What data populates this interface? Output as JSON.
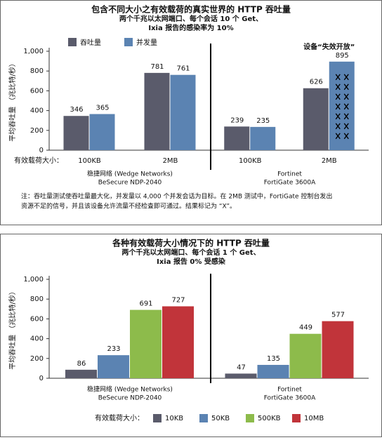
{
  "chart_data": [
    {
      "type": "bar",
      "title": "包含不同大小之有效载荷的真实世界的 HTTP 吞吐量",
      "subtitle": [
        "两个千兆以太网端口、每个会话 10 个 Get、",
        "Ixia 报告的感染率为 10%"
      ],
      "y_label": "平均吞吐量 （兆比特/秒）",
      "x_label": "有效载荷大小：",
      "categories": [
        "100KB",
        "2MB",
        "100KB",
        "2MB"
      ],
      "groups": [
        [
          "稳捷网络 (Wedge Networks)",
          "BeSecure NDP-2040"
        ],
        [
          "Fortinet",
          "FortiGate 3600A"
        ]
      ],
      "series": [
        {
          "name": "吞吐量",
          "color": "#5a5b6b",
          "values": [
            346,
            781,
            239,
            626
          ]
        },
        {
          "name": "并发量",
          "color": "#5b83b2",
          "values": [
            365,
            761,
            235,
            895
          ],
          "marked": [
            false,
            false,
            false,
            true
          ]
        }
      ],
      "annotation": "设备“失效开放”",
      "note": [
        "注：吞吐量测试使吞吐量最大化，并发量以 4,000 个并发会话为目标。在 2MB 测试中，FortiGate 控制台发出",
        "资源不足的信号，并且该设备允许流量不经检查即可通过。结果标记为 “X”。"
      ],
      "ylim": [
        0,
        1000
      ],
      "yticks": [
        0,
        200,
        400,
        600,
        800,
        {
          "value": 1000,
          "label": "1,000"
        }
      ]
    },
    {
      "type": "bar",
      "title": "各种有效载荷大小情况下的 HTTP 吞吐量",
      "subtitle": [
        "两个千兆以太网端口、每个会话 1 个 Get、",
        "Ixia 报告 0% 受感染"
      ],
      "y_label": "平均吞吐量 （兆比特/秒）",
      "legend_title": "有效载荷大小：",
      "categories": [
        [
          "稳捷网络 (Wedge Networks)",
          "BeSecure NDP-2040"
        ],
        [
          "Fortinet",
          "FortiGate 3600A"
        ]
      ],
      "series": [
        {
          "name": "10KB",
          "color": "#5a5b6b",
          "values": [
            86,
            47
          ]
        },
        {
          "name": "50KB",
          "color": "#5b83b2",
          "values": [
            233,
            135
          ]
        },
        {
          "name": "500KB",
          "color": "#8dbb4b",
          "values": [
            691,
            449
          ]
        },
        {
          "name": "10MB",
          "color": "#c1343a",
          "values": [
            727,
            577
          ]
        }
      ],
      "ylim": [
        0,
        1000
      ],
      "yticks": [
        0,
        200,
        400,
        600,
        800,
        {
          "value": 1000,
          "label": "1,000"
        }
      ]
    }
  ]
}
